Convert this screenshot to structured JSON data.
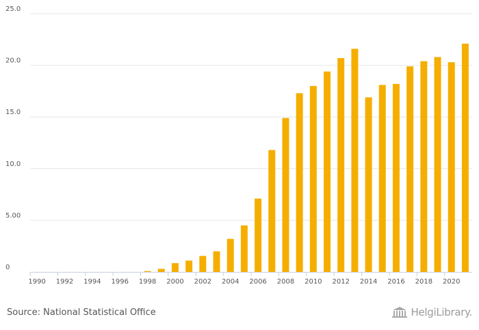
{
  "chart_data": {
    "type": "bar",
    "title": "",
    "xlabel": "",
    "ylabel": "",
    "ylim": [
      0,
      25
    ],
    "y_ticks": [
      {
        "value": 0,
        "label": "0"
      },
      {
        "value": 5,
        "label": "5.00"
      },
      {
        "value": 10,
        "label": "10.0"
      },
      {
        "value": 15,
        "label": "15.0"
      },
      {
        "value": 20,
        "label": "20.0"
      },
      {
        "value": 25,
        "label": "25.0"
      }
    ],
    "categories": [
      "1990",
      "1991",
      "1992",
      "1993",
      "1994",
      "1995",
      "1996",
      "1997",
      "1998",
      "1999",
      "2000",
      "2001",
      "2002",
      "2003",
      "2004",
      "2005",
      "2006",
      "2007",
      "2008",
      "2009",
      "2010",
      "2011",
      "2012",
      "2013",
      "2014",
      "2015",
      "2016",
      "2017",
      "2018",
      "2019",
      "2020",
      "2021"
    ],
    "x_tick_labels": [
      "1990",
      "1992",
      "1994",
      "1996",
      "1998",
      "2000",
      "2002",
      "2004",
      "2006",
      "2008",
      "2010",
      "2012",
      "2014",
      "2016",
      "2018",
      "2020"
    ],
    "values": [
      0,
      0,
      0,
      0,
      0,
      0,
      0,
      0,
      0.08,
      0.3,
      0.85,
      1.1,
      1.55,
      2.0,
      3.2,
      4.5,
      7.1,
      11.8,
      14.9,
      17.3,
      18.0,
      19.4,
      20.7,
      21.6,
      16.9,
      18.1,
      18.2,
      19.9,
      20.4,
      20.8,
      20.3,
      22.1
    ],
    "bar_color": "#f5ae00",
    "grid": true
  },
  "footer": {
    "source": "Source: National Statistical Office",
    "brand": "HelgiLibrary."
  }
}
